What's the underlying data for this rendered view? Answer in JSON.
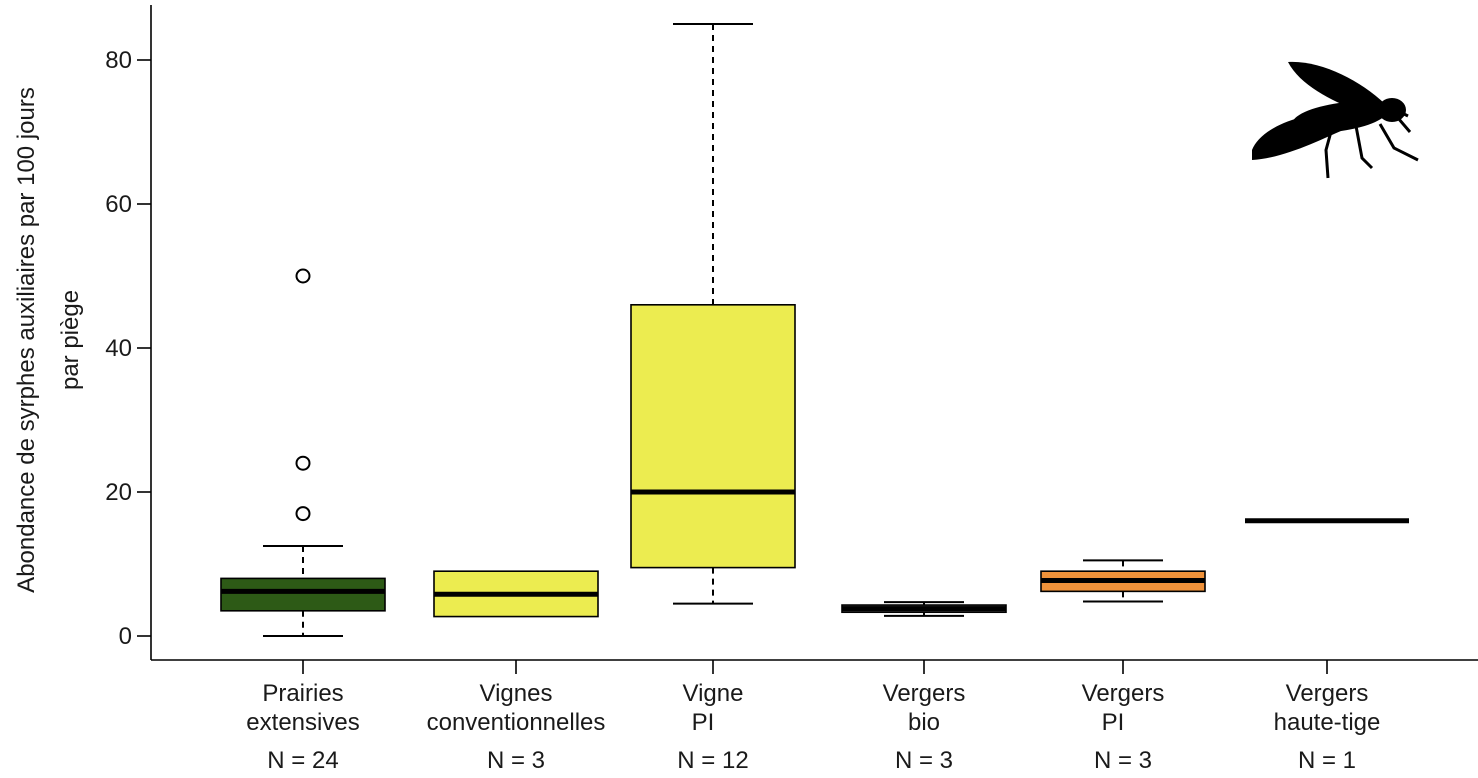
{
  "chart_data": {
    "type": "box",
    "ylabel": "Abondance de syrphes auxiliaires par 100 jours par piège",
    "ylabel_lines": [
      "Abondance de syrphes auxiliaires par 100 jours",
      "par piège"
    ],
    "ylim": [
      0,
      80
    ],
    "yticks": [
      0,
      20,
      40,
      60,
      80
    ],
    "grid": false,
    "groups": [
      {
        "label_lines": [
          "Prairies",
          "extensives"
        ],
        "n_label": "N = 24",
        "color": "#2d5a16",
        "whisker_low": 0,
        "q1": 3.5,
        "median": 6.2,
        "q3": 8.0,
        "whisker_high": 12.5,
        "outliers": [
          17,
          24,
          50
        ]
      },
      {
        "label_lines": [
          "Vignes",
          "conventionnelles"
        ],
        "n_label": "N = 3",
        "color": "#ecec50",
        "whisker_low": 2.7,
        "q1": 2.7,
        "median": 5.8,
        "q3": 9.0,
        "whisker_high": 9.0,
        "outliers": []
      },
      {
        "label_lines": [
          "Vigne",
          "PI"
        ],
        "n_label": "N = 12",
        "color": "#ecec50",
        "whisker_low": 4.5,
        "q1": 9.5,
        "median": 20,
        "q3": 46,
        "whisker_high": 85,
        "outliers": []
      },
      {
        "label_lines": [
          "Vergers",
          "bio"
        ],
        "n_label": "N = 3",
        "color": "#555555",
        "whisker_low": 2.8,
        "q1": 3.3,
        "median": 3.8,
        "q3": 4.3,
        "whisker_high": 4.7,
        "outliers": []
      },
      {
        "label_lines": [
          "Vergers",
          "PI"
        ],
        "n_label": "N = 3",
        "color": "#f0923a",
        "whisker_low": 4.8,
        "q1": 6.2,
        "median": 7.7,
        "q3": 9.0,
        "whisker_high": 10.5,
        "outliers": []
      },
      {
        "label_lines": [
          "Vergers",
          "haute-tige"
        ],
        "n_label": "N = 1",
        "color": "#000000",
        "whisker_low": 16,
        "q1": 16,
        "median": 16,
        "q3": 16,
        "whisker_high": 16,
        "outliers": []
      }
    ],
    "icon": "hoverfly-silhouette-icon"
  }
}
